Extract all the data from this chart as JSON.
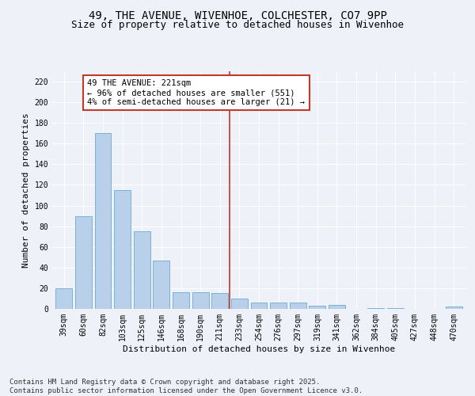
{
  "title1": "49, THE AVENUE, WIVENHOE, COLCHESTER, CO7 9PP",
  "title2": "Size of property relative to detached houses in Wivenhoe",
  "xlabel": "Distribution of detached houses by size in Wivenhoe",
  "ylabel": "Number of detached properties",
  "bar_labels": [
    "39sqm",
    "60sqm",
    "82sqm",
    "103sqm",
    "125sqm",
    "146sqm",
    "168sqm",
    "190sqm",
    "211sqm",
    "233sqm",
    "254sqm",
    "276sqm",
    "297sqm",
    "319sqm",
    "341sqm",
    "362sqm",
    "384sqm",
    "405sqm",
    "427sqm",
    "448sqm",
    "470sqm"
  ],
  "bar_values": [
    20,
    90,
    170,
    115,
    75,
    47,
    16,
    16,
    15,
    10,
    6,
    6,
    6,
    3,
    4,
    0,
    1,
    1,
    0,
    0,
    2
  ],
  "bar_color": "#b8d0ea",
  "bar_edge_color": "#6aabd2",
  "vline_x_index": 8.5,
  "annotation_text": "49 THE AVENUE: 221sqm\n← 96% of detached houses are smaller (551)\n4% of semi-detached houses are larger (21) →",
  "vline_color": "#c0392b",
  "annotation_box_color": "#ffffff",
  "annotation_box_edge": "#c0392b",
  "ylim": [
    0,
    230
  ],
  "yticks": [
    0,
    20,
    40,
    60,
    80,
    100,
    120,
    140,
    160,
    180,
    200,
    220
  ],
  "footnote": "Contains HM Land Registry data © Crown copyright and database right 2025.\nContains public sector information licensed under the Open Government Licence v3.0.",
  "background_color": "#eef2f8",
  "grid_color": "#ffffff",
  "title_fontsize": 10,
  "subtitle_fontsize": 9,
  "axis_label_fontsize": 8,
  "tick_fontsize": 7,
  "footnote_fontsize": 6.5,
  "annot_fontsize": 7.5
}
